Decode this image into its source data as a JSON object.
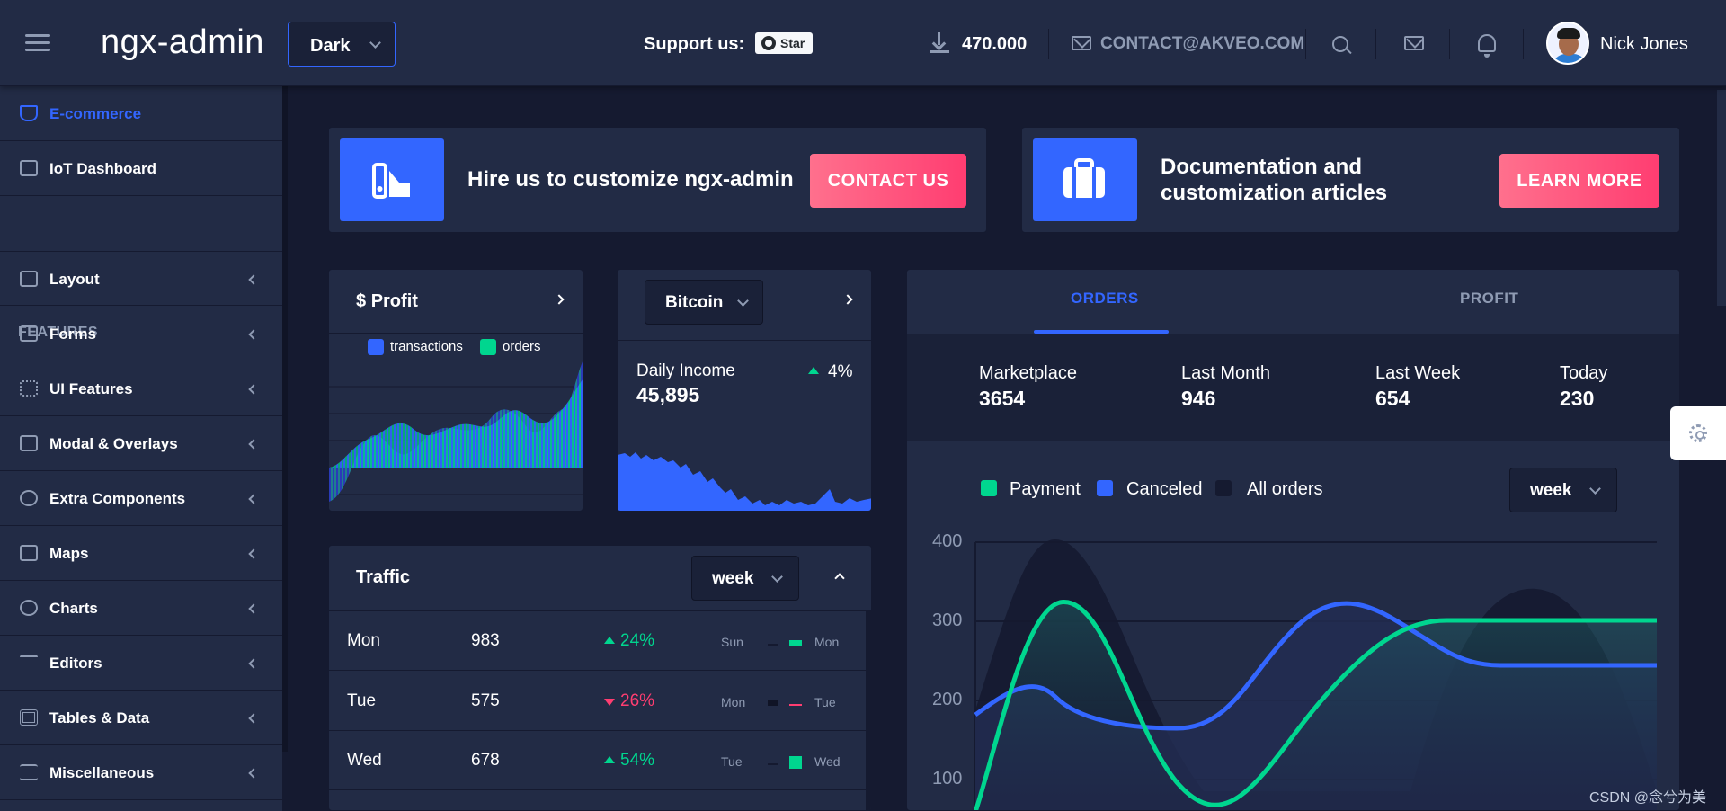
{
  "header": {
    "logo": "ngx-admin",
    "theme": "Dark",
    "support_label": "Support us:",
    "star_label": "Star",
    "downloads": "470.000",
    "contact": "CONTACT@AKVEO.COM",
    "user_name": "Nick Jones"
  },
  "sidebar": {
    "items": [
      {
        "label": "E-commerce",
        "icon": "shopping-cart-icon"
      },
      {
        "label": "IoT Dashboard",
        "icon": "home-icon"
      },
      {
        "label": "Layout",
        "icon": "layout-icon"
      },
      {
        "label": "Forms",
        "icon": "edit-icon"
      },
      {
        "label": "UI Features",
        "icon": "grid-icon"
      },
      {
        "label": "Modal & Overlays",
        "icon": "browser-icon"
      },
      {
        "label": "Extra Components",
        "icon": "message-circle-icon"
      },
      {
        "label": "Maps",
        "icon": "map-icon"
      },
      {
        "label": "Charts",
        "icon": "pie-chart-icon"
      },
      {
        "label": "Editors",
        "icon": "text-icon"
      },
      {
        "label": "Tables & Data",
        "icon": "grid-icon"
      },
      {
        "label": "Miscellaneous",
        "icon": "shuffle-icon"
      }
    ],
    "section_label": "FEATURES"
  },
  "banners": [
    {
      "text": "Hire us to customize ngx-admin",
      "button": "CONTACT US"
    },
    {
      "text_line1": "Documentation and",
      "text_line2": "customization articles",
      "button": "LEARN MORE"
    }
  ],
  "profit_card": {
    "title": "Profit",
    "legend": [
      "transactions",
      "orders"
    ]
  },
  "bitcoin_card": {
    "currency": "Bitcoin",
    "label": "Daily Income",
    "value": "45,895",
    "change": "4%"
  },
  "traffic": {
    "title": "Traffic",
    "period": "week",
    "rows": [
      {
        "day": "Mon",
        "value": "983",
        "change": "24%",
        "prev": "Sun",
        "cur": "Mon"
      },
      {
        "day": "Tue",
        "value": "575",
        "change": "26%",
        "prev": "Mon",
        "cur": "Tue"
      },
      {
        "day": "Wed",
        "value": "678",
        "change": "54%",
        "prev": "Tue",
        "cur": "Wed"
      }
    ]
  },
  "orders": {
    "tabs": [
      "ORDERS",
      "PROFIT"
    ],
    "stats": [
      {
        "label": "Marketplace",
        "value": "3654"
      },
      {
        "label": "Last Month",
        "value": "946"
      },
      {
        "label": "Last Week",
        "value": "654"
      },
      {
        "label": "Today",
        "value": "230"
      }
    ],
    "legend": [
      "Payment",
      "Canceled",
      "All orders"
    ],
    "period": "week",
    "yticks": [
      "400",
      "300",
      "200",
      "100"
    ]
  },
  "watermark": "CSDN @念兮为美",
  "colors": {
    "primary": "#3366ff",
    "success": "#00d68f",
    "danger": "#ff3d71",
    "bg": "#151a30",
    "card": "#222b45"
  }
}
